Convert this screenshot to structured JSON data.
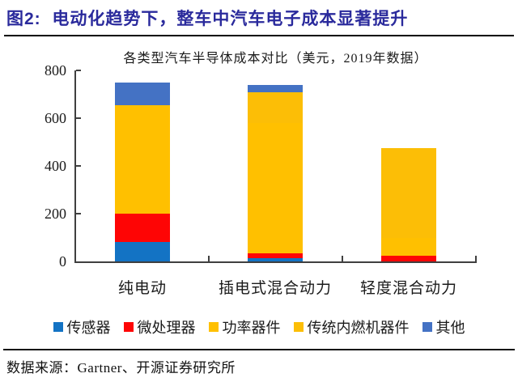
{
  "figure": {
    "title": "图2:  电动化趋势下，整车中汽车电子成本显著提升",
    "title_color": "#2A2A9C",
    "source": "数据来源：Gartner、开源证券研究所"
  },
  "chart_data": {
    "type": "bar",
    "stacked": true,
    "title": "各类型汽车半导体成本对比（美元，2019年数据）",
    "categories": [
      "纯电动",
      "插电式混合动力",
      "轻度混合动力"
    ],
    "series": [
      {
        "name": "传感器",
        "color": "#1373C4",
        "values": [
          80,
          15,
          0
        ]
      },
      {
        "name": "微处理器",
        "color": "#FE0505",
        "values": [
          120,
          20,
          25
        ]
      },
      {
        "name": "功率器件",
        "color": "#FFC000",
        "values": [
          455,
          545,
          75
        ]
      },
      {
        "name": "传统内燃机器件",
        "color": "#FCBE06",
        "values": [
          0,
          130,
          375
        ]
      },
      {
        "name": "其他",
        "color": "#4472C4",
        "values": [
          95,
          30,
          0
        ]
      }
    ],
    "approx_totals": [
      750,
      740,
      475
    ],
    "ylim": [
      0,
      800
    ],
    "yticks": [
      0,
      200,
      400,
      600,
      800
    ],
    "xlabel": "",
    "ylabel": "",
    "grid": false,
    "legend_position": "bottom"
  }
}
